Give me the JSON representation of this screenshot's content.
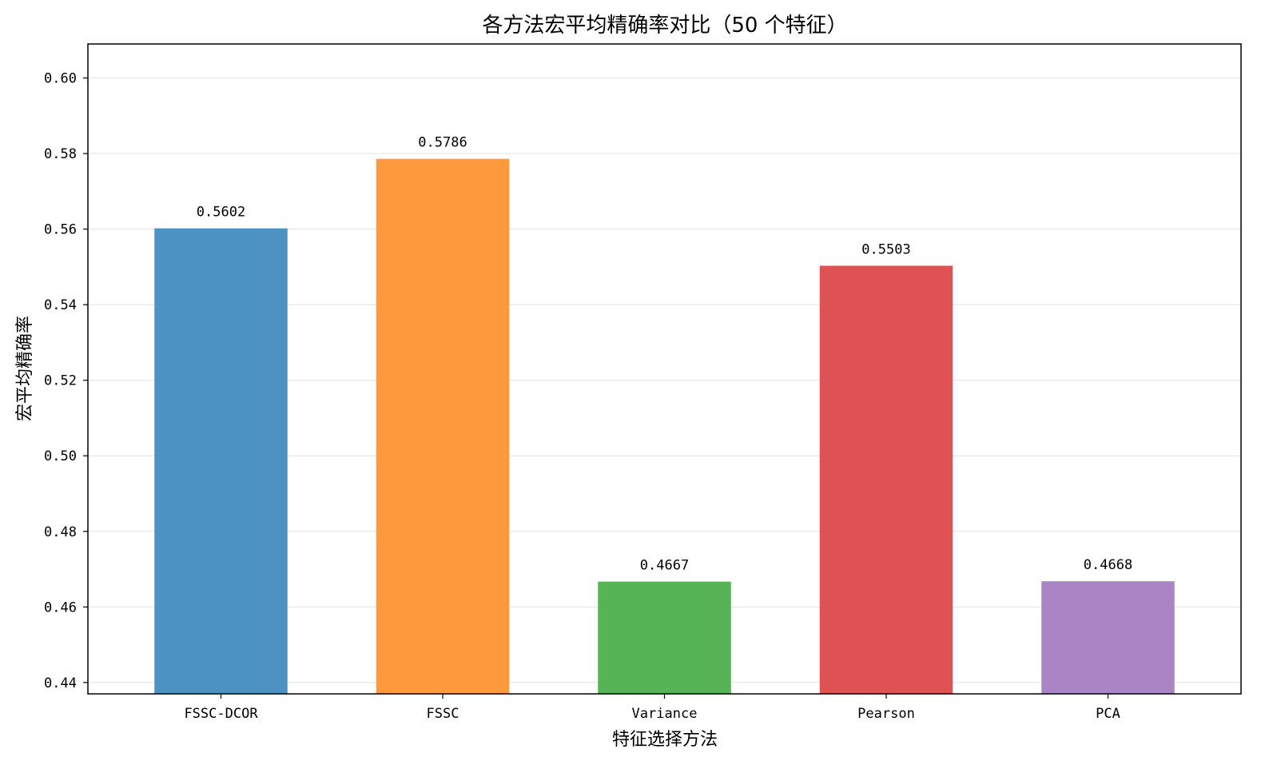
{
  "chart_data": {
    "type": "bar",
    "title": "各方法宏平均精确率对比（50 个特征）",
    "xlabel": "特征选择方法",
    "ylabel": "宏平均精确率",
    "categories": [
      "FSSC-DCOR",
      "FSSC",
      "Variance",
      "Pearson",
      "PCA"
    ],
    "values": [
      0.5602,
      0.5786,
      0.4667,
      0.5503,
      0.4668
    ],
    "data_labels": [
      "0.5602",
      "0.5786",
      "0.4667",
      "0.5503",
      "0.4668"
    ],
    "colors": [
      "#4c92c3",
      "#ff993e",
      "#56b356",
      "#de5253",
      "#a985c6"
    ],
    "ylim": [
      0.437,
      0.609
    ],
    "yticks": [
      0.44,
      0.46,
      0.48,
      0.5,
      0.52,
      0.54,
      0.56,
      0.58,
      0.6
    ],
    "ytick_labels": [
      "0.44",
      "0.46",
      "0.48",
      "0.50",
      "0.52",
      "0.54",
      "0.56",
      "0.58",
      "0.60"
    ],
    "grid": "horizontal",
    "legend": "none"
  }
}
